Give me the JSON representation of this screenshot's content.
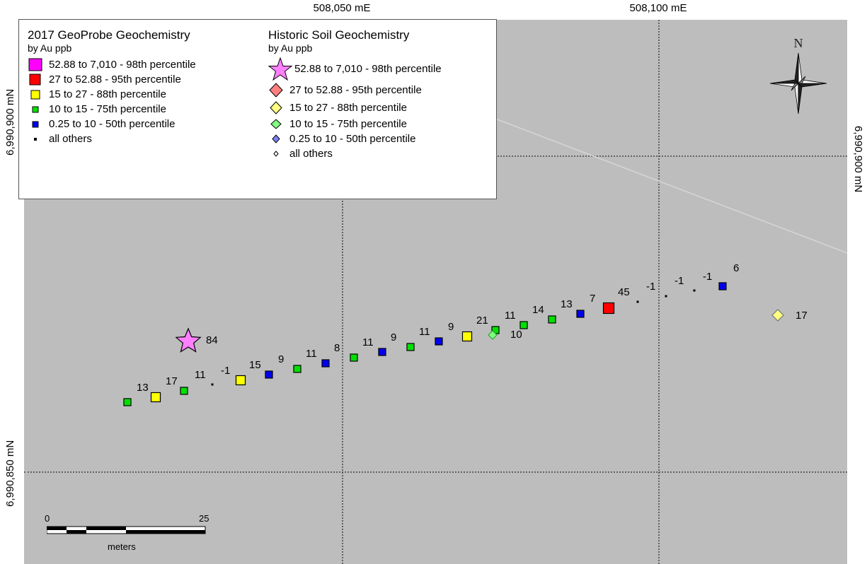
{
  "map": {
    "coords": {
      "e1": "508,050 mE",
      "e2": "508,100 mE",
      "n1_left": "6,990,900 mN",
      "n2_left": "6,990,850 mN",
      "n1_right": "6,990,900 mN"
    },
    "background_color": "#bdbdbd"
  },
  "legend": {
    "geoprobe": {
      "title": "2017 GeoProbe Geochemistry",
      "subtitle": "by Au ppb",
      "items": [
        {
          "label": "52.88 to 7,010 - 98th percentile",
          "color": "#ff00ff",
          "shape": "square-large"
        },
        {
          "label": "27 to 52.88 - 95th percentile",
          "color": "#ff0000",
          "shape": "square-large"
        },
        {
          "label": "15 to 27 - 88th percentile",
          "color": "#ffff00",
          "shape": "square"
        },
        {
          "label": "10 to 15 - 75th percentile",
          "color": "#00e000",
          "shape": "square-small"
        },
        {
          "label": "0.25 to 10 - 50th percentile",
          "color": "#0000ee",
          "shape": "square-small"
        },
        {
          "label": "all others",
          "color": "#000000",
          "shape": "dot"
        }
      ]
    },
    "historic": {
      "title": "Historic Soil Geochemistry",
      "subtitle": "by Au ppb",
      "items": [
        {
          "label": "52.88 to 7,010 - 98th percentile",
          "color": "#ff80ff",
          "shape": "star"
        },
        {
          "label": "27 to 52.88 - 95th percentile",
          "color": "#ff7f7f",
          "shape": "diamond"
        },
        {
          "label": "15 to 27 - 88th percentile",
          "color": "#ffff80",
          "shape": "diamond"
        },
        {
          "label": "10 to 15 - 75th percentile",
          "color": "#80ff80",
          "shape": "diamond"
        },
        {
          "label": "0.25 to 10 - 50th percentile",
          "color": "#8080ff",
          "shape": "diamond-small"
        },
        {
          "label": "all others",
          "color": "#ffffff",
          "shape": "diamond-tiny"
        }
      ]
    }
  },
  "samples": {
    "geoprobe": [
      {
        "value": "",
        "cls": "green"
      },
      {
        "value": "13",
        "cls": "yellow"
      },
      {
        "value": "17",
        "cls": "green"
      },
      {
        "value": "11",
        "cls": "dot"
      },
      {
        "value": "-1",
        "cls": "yellow"
      },
      {
        "value": "15",
        "cls": "blue"
      },
      {
        "value": "9",
        "cls": "green"
      },
      {
        "value": "11",
        "cls": "blue"
      },
      {
        "value": "8",
        "cls": "green"
      },
      {
        "value": "11",
        "cls": "blue"
      },
      {
        "value": "9",
        "cls": "green"
      },
      {
        "value": "11",
        "cls": "blue"
      },
      {
        "value": "9",
        "cls": "yellow"
      },
      {
        "value": "21",
        "cls": "green"
      },
      {
        "value": "11",
        "cls": "green"
      },
      {
        "value": "14",
        "cls": "green"
      },
      {
        "value": "13",
        "cls": "blue"
      },
      {
        "value": "7",
        "cls": "red"
      },
      {
        "value": "45",
        "cls": "dot"
      },
      {
        "value": "-1",
        "cls": "dot"
      },
      {
        "value": "-1",
        "cls": "dot"
      },
      {
        "value": "-1",
        "cls": "blue"
      },
      {
        "value": "6",
        "cls": "none"
      }
    ],
    "historic": [
      {
        "value": "84",
        "cls": "star"
      },
      {
        "value": "10",
        "cls": "diamond-green"
      },
      {
        "value": "17",
        "cls": "diamond-yellow"
      }
    ]
  },
  "north_arrow": {
    "label": "N"
  },
  "scale_bar": {
    "start": "0",
    "end": "25",
    "unit": "meters"
  }
}
